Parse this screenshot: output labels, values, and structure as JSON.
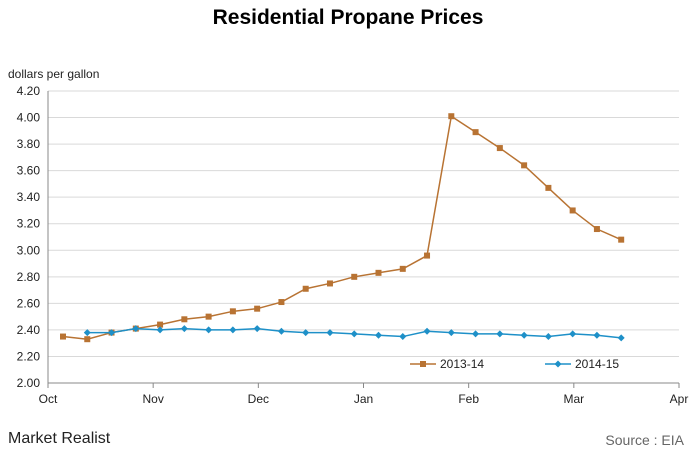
{
  "chart_data": {
    "type": "line",
    "title": "Residential Propane Prices",
    "ylabel": "dollars per gallon",
    "xlabel": "",
    "ylim": [
      2.0,
      4.2
    ],
    "yticks": [
      "2.00",
      "2.20",
      "2.40",
      "2.60",
      "2.80",
      "3.00",
      "3.20",
      "3.40",
      "3.60",
      "3.80",
      "4.00",
      "4.20"
    ],
    "xticks": [
      "Oct",
      "Nov",
      "Dec",
      "Jan",
      "Feb",
      "Mar",
      "Apr"
    ],
    "grid": true,
    "legend_position": "bottom-right",
    "series": [
      {
        "name": "2013-14",
        "color": "#b87333",
        "marker": "square",
        "start_slot": 0,
        "values": [
          2.35,
          2.33,
          2.38,
          2.41,
          2.44,
          2.48,
          2.5,
          2.54,
          2.56,
          2.61,
          2.71,
          2.75,
          2.8,
          2.83,
          2.86,
          2.96,
          4.01,
          3.89,
          3.77,
          3.64,
          3.47,
          3.3,
          3.16,
          3.08
        ]
      },
      {
        "name": "2014-15",
        "color": "#1e90c8",
        "marker": "diamond",
        "start_slot": 1,
        "values": [
          2.38,
          2.38,
          2.41,
          2.4,
          2.41,
          2.4,
          2.4,
          2.41,
          2.39,
          2.38,
          2.38,
          2.37,
          2.36,
          2.35,
          2.39,
          2.38,
          2.37,
          2.37,
          2.36,
          2.35,
          2.37,
          2.36,
          2.34
        ]
      }
    ]
  },
  "logo": "Market Realist",
  "source": "Source : EIA"
}
